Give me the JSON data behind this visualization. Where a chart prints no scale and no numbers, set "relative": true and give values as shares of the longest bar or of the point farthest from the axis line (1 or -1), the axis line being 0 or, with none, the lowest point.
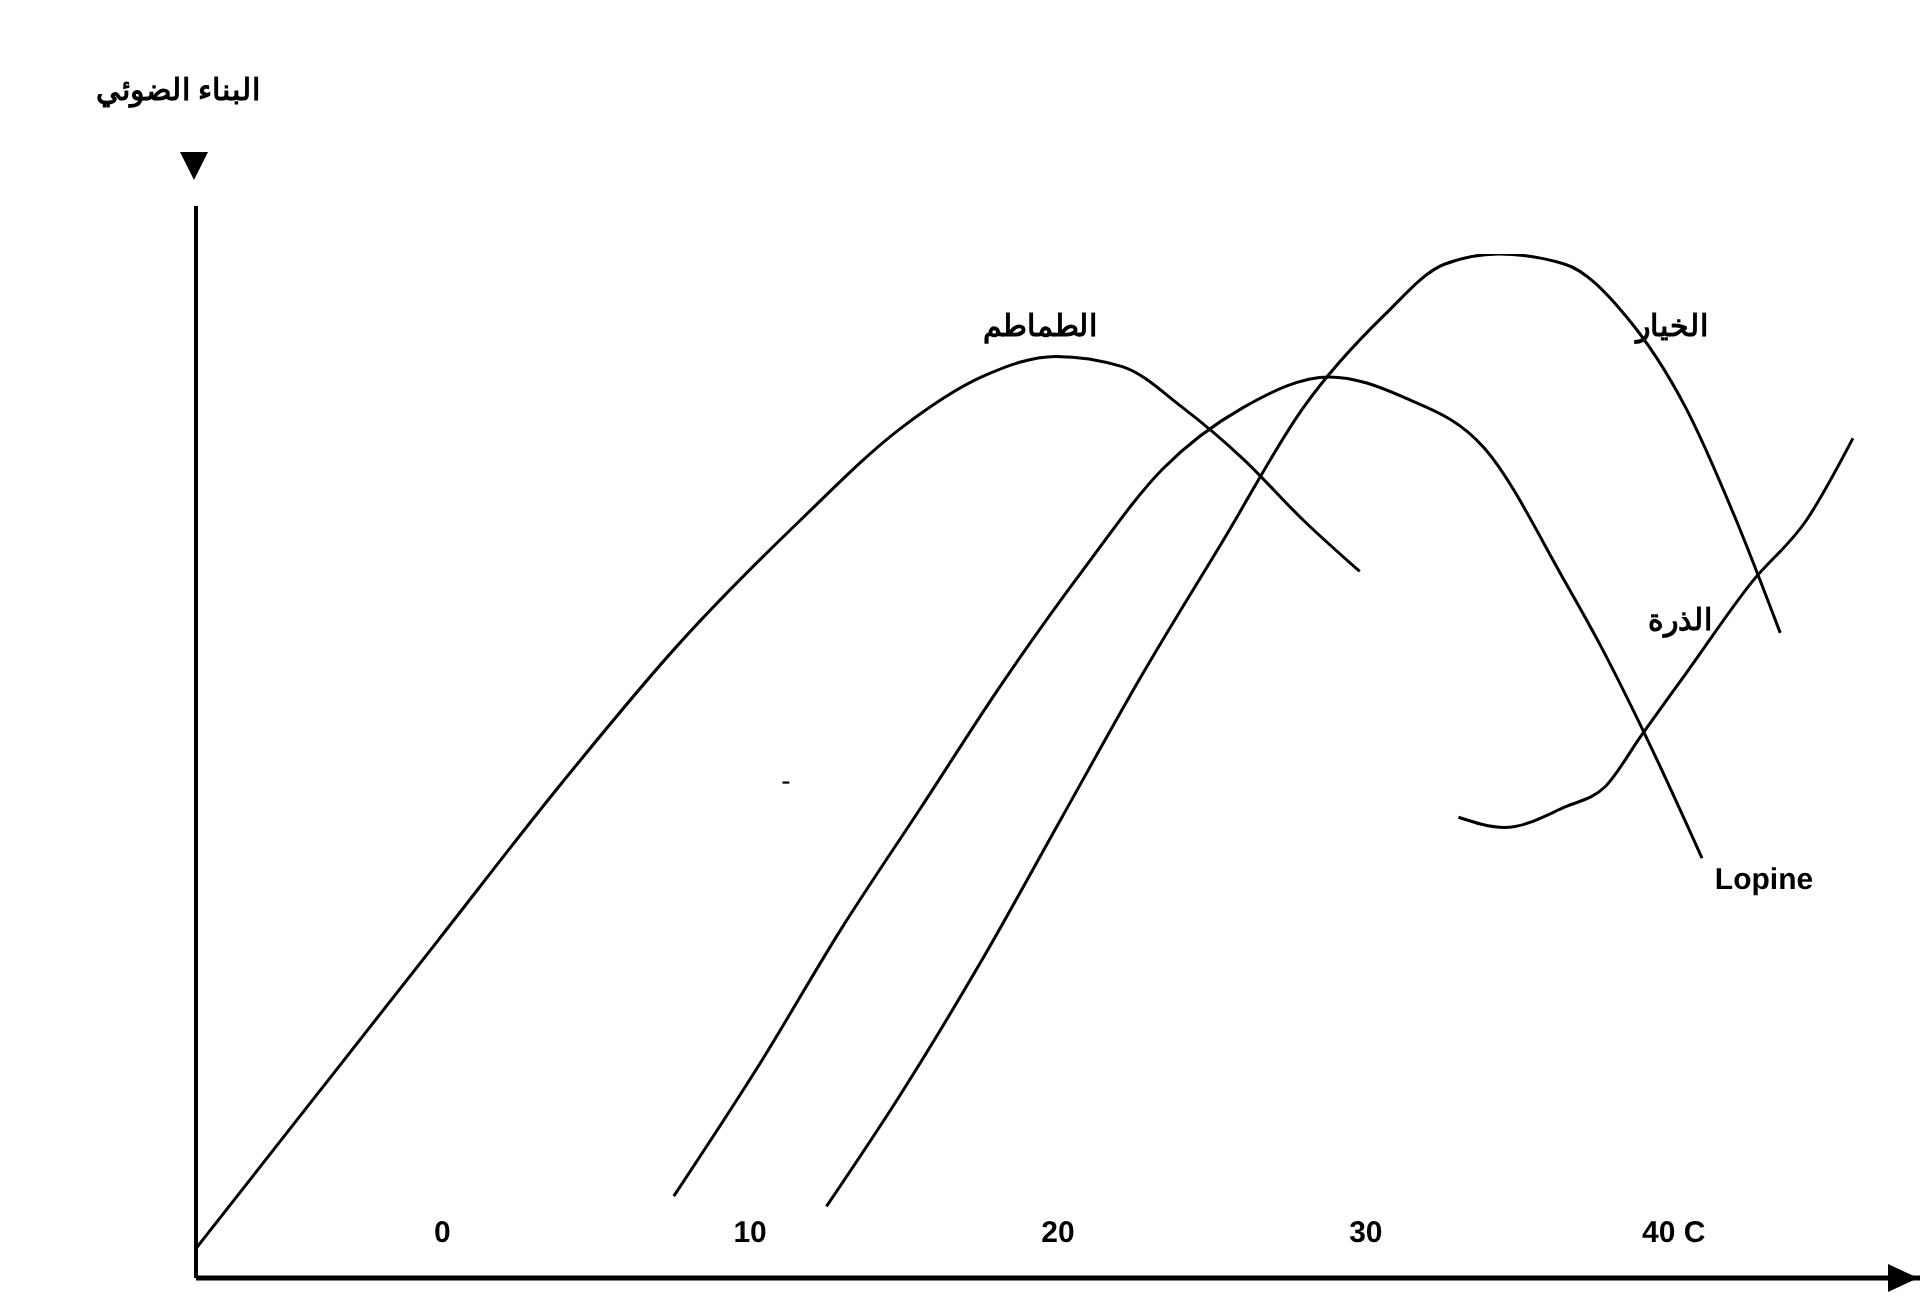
{
  "chart_data": {
    "type": "line",
    "ylabel": "البناء الضوئي",
    "relative": true,
    "xlim": [
      -8,
      48
    ],
    "xticks": [
      0,
      10,
      20,
      30,
      {
        "value": 40,
        "label": "40 C"
      }
    ],
    "grid": false,
    "legend": false,
    "annotations": [
      "-"
    ],
    "series": [
      {
        "name": "الطماطم",
        "color": "#000000",
        "x": [
          -7.97,
          -4.05,
          -0.13,
          3.79,
          7.71,
          11.63,
          14.9,
          17.52,
          19.93,
          22.09,
          24.05,
          26.01,
          27.97,
          29.8
        ],
        "values": [
          0.03,
          0.18,
          0.33,
          0.48,
          0.62,
          0.74,
          0.83,
          0.88,
          0.9,
          0.89,
          0.85,
          0.8,
          0.74,
          0.69
        ]
      },
      {
        "name": "Lopine",
        "color": "#000000",
        "x": [
          7.52,
          10.33,
          12.94,
          15.56,
          18.17,
          20.78,
          23.4,
          26.01,
          28.82,
          31.24,
          33.86,
          36.47,
          37.58,
          39.08,
          40.92
        ],
        "values": [
          0.08,
          0.21,
          0.34,
          0.46,
          0.58,
          0.69,
          0.79,
          0.85,
          0.88,
          0.86,
          0.81,
          0.68,
          0.62,
          0.53,
          0.41
        ]
      },
      {
        "name": "الخيار",
        "color": "#000000",
        "x": [
          12.48,
          14.9,
          17.52,
          20.13,
          22.75,
          25.36,
          27.97,
          30.59,
          32.55,
          34.31,
          36.47,
          38.43,
          40.39,
          42.03,
          43.46
        ],
        "values": [
          0.07,
          0.18,
          0.31,
          0.45,
          0.59,
          0.72,
          0.85,
          0.94,
          0.99,
          1,
          0.99,
          0.94,
          0.85,
          0.74,
          0.63
        ]
      },
      {
        "name": "الذرة",
        "color": "#000000",
        "x": [
          33.01,
          34.51,
          36.47,
          37.78,
          38.95,
          40.39,
          42.55,
          44.31,
          45.82
        ],
        "values": [
          0.45,
          0.44,
          0.46,
          0.48,
          0.53,
          0.59,
          0.68,
          0.74,
          0.82
        ]
      }
    ]
  }
}
